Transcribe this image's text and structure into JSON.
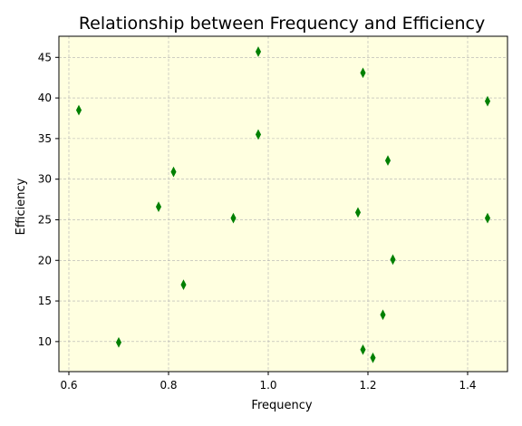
{
  "chart_data": {
    "type": "scatter",
    "title": "Relationship between Frequency and Efficiency",
    "xlabel": "Frequency",
    "ylabel": "Efficiency",
    "xlim": [
      0.58,
      1.48
    ],
    "ylim": [
      6.3,
      47.6
    ],
    "xticks": [
      0.6,
      0.8,
      1.0,
      1.2,
      1.4
    ],
    "xtick_labels": [
      "0.6",
      "0.8",
      "1.0",
      "1.2",
      "1.4"
    ],
    "yticks": [
      10,
      15,
      20,
      25,
      30,
      35,
      40,
      45
    ],
    "ytick_labels": [
      "10",
      "15",
      "20",
      "25",
      "30",
      "35",
      "40",
      "45"
    ],
    "grid": true,
    "marker": "thin_diamond",
    "marker_color": "#008000",
    "plot_background": "#ffffe0",
    "points": [
      {
        "x": 0.62,
        "y": 38.5
      },
      {
        "x": 0.7,
        "y": 9.9
      },
      {
        "x": 0.78,
        "y": 26.6
      },
      {
        "x": 0.81,
        "y": 30.9
      },
      {
        "x": 0.83,
        "y": 17.0
      },
      {
        "x": 0.93,
        "y": 25.2
      },
      {
        "x": 0.98,
        "y": 45.7
      },
      {
        "x": 0.98,
        "y": 35.5
      },
      {
        "x": 1.18,
        "y": 25.9
      },
      {
        "x": 1.19,
        "y": 9.0
      },
      {
        "x": 1.19,
        "y": 43.1
      },
      {
        "x": 1.21,
        "y": 8.0
      },
      {
        "x": 1.23,
        "y": 13.3
      },
      {
        "x": 1.24,
        "y": 32.3
      },
      {
        "x": 1.25,
        "y": 20.1
      },
      {
        "x": 1.44,
        "y": 39.6
      },
      {
        "x": 1.44,
        "y": 25.2
      }
    ]
  }
}
